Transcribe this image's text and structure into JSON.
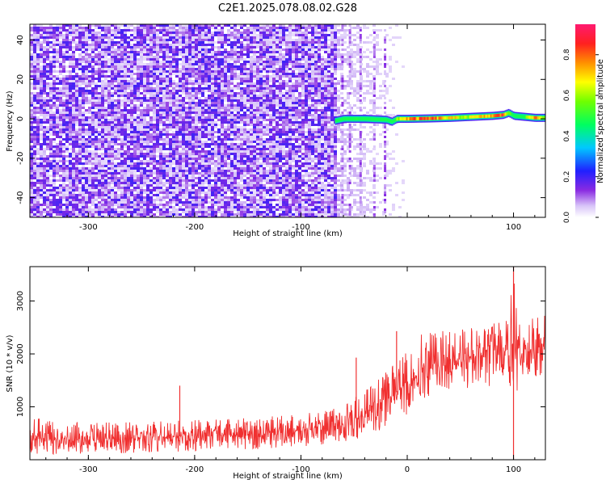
{
  "title": "C2E1.2025.078.08.02.G28",
  "chart_data": [
    {
      "type": "heatmap",
      "xlabel": "Height of straight line (km)",
      "ylabel": "Frequency (Hz)",
      "xlim": [
        -355,
        130
      ],
      "ylim": [
        -50,
        48
      ],
      "x_ticks": [
        -300,
        -200,
        -100,
        0,
        100
      ],
      "x_tick_labels": [
        "-300",
        "-200",
        "-100",
        "",
        "100"
      ],
      "y_ticks": [
        -40,
        -20,
        0,
        20,
        40
      ],
      "y_tick_labels": [
        "-40",
        "-20",
        "0",
        "20",
        "40"
      ],
      "grid": false,
      "colorbar": {
        "label": "Normalized spectral amplitude",
        "range": [
          0.0,
          0.95
        ],
        "ticks": [
          0.0,
          0.2,
          0.4,
          0.6,
          0.8
        ],
        "tick_labels": [
          "0.0",
          "0.2",
          "0.4",
          "0.6",
          "0.8"
        ],
        "colormap": "rainbow"
      },
      "noise_region_x": [
        -355,
        -68
      ],
      "signal_start_x": -68,
      "signal_ridge": {
        "x": [
          -68,
          -60,
          -40,
          -20,
          -15,
          -10,
          0,
          20,
          40,
          60,
          80,
          90,
          95,
          100,
          110,
          120,
          130
        ],
        "y": [
          -1,
          0,
          0,
          -0.5,
          -1.5,
          0,
          0,
          0.2,
          0.5,
          1,
          1.5,
          2,
          3,
          1.5,
          1,
          0.5,
          0.5
        ],
        "amplitude": [
          0.3,
          0.5,
          0.5,
          0.4,
          0.3,
          0.7,
          0.85,
          0.9,
          0.75,
          0.7,
          0.85,
          0.95,
          0.6,
          0.5,
          0.55,
          0.9,
          0.6
        ]
      }
    },
    {
      "type": "line",
      "xlabel": "Height of straight line (km)",
      "ylabel": "SNR (10 * v/v)",
      "xlim": [
        -355,
        130
      ],
      "ylim": [
        0,
        3650
      ],
      "x_ticks": [
        -300,
        -200,
        -100,
        0,
        100
      ],
      "x_tick_labels": [
        "-300",
        "-200",
        "-100",
        "0",
        "100"
      ],
      "y_ticks": [
        1000,
        2000,
        3000
      ],
      "y_tick_labels": [
        "1000",
        "2000",
        "3000"
      ],
      "grid": false,
      "series": [
        {
          "color": "#f03030",
          "x": [
            -355,
            -300,
            -250,
            -200,
            -150,
            -100,
            -80,
            -60,
            -40,
            -20,
            0,
            10,
            20,
            40,
            60,
            80,
            95,
            100,
            105,
            110,
            120,
            130
          ],
          "y_low": [
            100,
            110,
            130,
            160,
            190,
            250,
            280,
            330,
            420,
            600,
            800,
            1000,
            1200,
            1250,
            1300,
            1400,
            1500,
            0,
            1550,
            1500,
            1550,
            1600
          ],
          "y_high": [
            800,
            700,
            720,
            750,
            800,
            880,
            950,
            1050,
            1300,
            1650,
            2100,
            2350,
            2400,
            2450,
            2500,
            2600,
            2650,
            3650,
            2700,
            2650,
            2700,
            2750
          ],
          "y_mean": [
            400,
            380,
            410,
            450,
            480,
            550,
            600,
            680,
            850,
            1100,
            1450,
            1650,
            1800,
            1850,
            1900,
            2000,
            2050,
            2000,
            2100,
            2050,
            2100,
            2150
          ]
        }
      ],
      "spikes": [
        {
          "x": -214,
          "y": 1400
        },
        {
          "x": -48,
          "y": 1930
        },
        {
          "x": -10,
          "y": 2430
        },
        {
          "x": 100,
          "y": 3650
        }
      ]
    }
  ]
}
